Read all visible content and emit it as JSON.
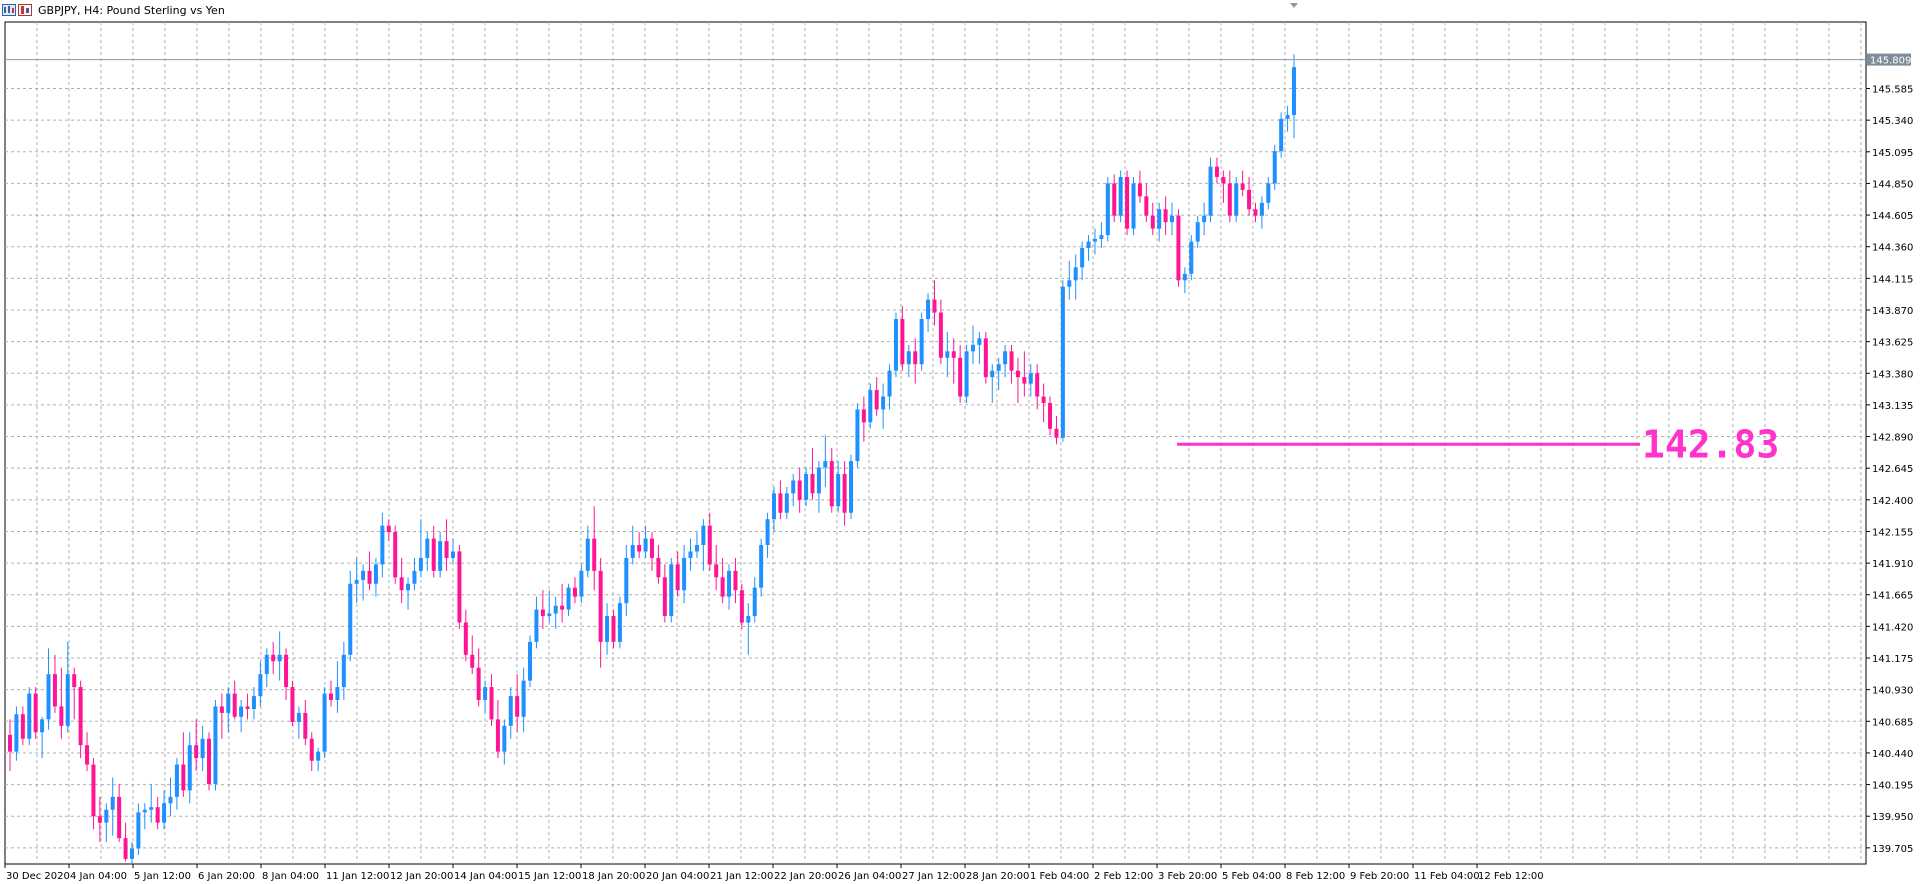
{
  "window": {
    "symbol": "GBPJPY",
    "timeframe": "H4",
    "description": "Pound Sterling vs Yen",
    "title_text": "GBPJPY, H4:  Pound Sterling vs Yen"
  },
  "colors": {
    "bull": "#1e90ff",
    "bear": "#ff1493",
    "grid": "#b0b0b0",
    "axis": "#000000",
    "annotation": "#ff33cc",
    "price_tag_bg": "#7f8c99"
  },
  "chart_data": {
    "type": "candlestick",
    "title": "",
    "xlabel": "",
    "ylabel": "",
    "current_price": "145.809",
    "y_ticks": [
      "145.585",
      "145.340",
      "145.095",
      "144.850",
      "144.605",
      "144.360",
      "144.115",
      "143.870",
      "143.625",
      "143.380",
      "143.135",
      "142.890",
      "142.645",
      "142.400",
      "142.155",
      "141.910",
      "141.665",
      "141.420",
      "141.175",
      "140.930",
      "140.685",
      "140.440",
      "140.195",
      "139.950",
      "139.705"
    ],
    "x_ticks": [
      "30 Dec 2020",
      "4 Jan 04:00",
      "5 Jan 12:00",
      "6 Jan 20:00",
      "8 Jan 04:00",
      "11 Jan 12:00",
      "12 Jan 20:00",
      "14 Jan 04:00",
      "15 Jan 12:00",
      "18 Jan 20:00",
      "20 Jan 04:00",
      "21 Jan 12:00",
      "22 Jan 20:00",
      "26 Jan 04:00",
      "27 Jan 12:00",
      "28 Jan 20:00",
      "1 Feb 04:00",
      "2 Feb 12:00",
      "3 Feb 20:00",
      "5 Feb 04:00",
      "8 Feb 12:00",
      "9 Feb 20:00",
      "11 Feb 04:00",
      "12 Feb 12:00"
    ],
    "ylim": [
      139.58,
      146.1
    ],
    "annotation": {
      "label": "142.83",
      "value": 142.83
    },
    "candles": [
      [
        140.58,
        140.7,
        140.3,
        140.45
      ],
      [
        140.45,
        140.8,
        140.38,
        140.74
      ],
      [
        140.74,
        140.8,
        140.5,
        140.55
      ],
      [
        140.55,
        140.95,
        140.5,
        140.9
      ],
      [
        140.9,
        140.95,
        140.55,
        140.6
      ],
      [
        140.6,
        140.72,
        140.4,
        140.7
      ],
      [
        140.7,
        141.25,
        140.62,
        141.05
      ],
      [
        141.05,
        141.2,
        140.75,
        140.8
      ],
      [
        140.8,
        141.1,
        140.55,
        140.65
      ],
      [
        140.65,
        141.3,
        140.6,
        141.05
      ],
      [
        141.05,
        141.1,
        140.7,
        140.95
      ],
      [
        140.95,
        141.0,
        140.4,
        140.5
      ],
      [
        140.5,
        140.6,
        140.3,
        140.35
      ],
      [
        140.35,
        140.4,
        139.85,
        139.95
      ],
      [
        139.95,
        140.1,
        139.75,
        139.9
      ],
      [
        139.9,
        140.05,
        139.75,
        140.0
      ],
      [
        140.0,
        140.25,
        139.8,
        140.1
      ],
      [
        140.1,
        140.2,
        139.75,
        139.78
      ],
      [
        139.78,
        139.9,
        139.6,
        139.62
      ],
      [
        139.62,
        139.75,
        139.58,
        139.7
      ],
      [
        139.7,
        140.05,
        139.65,
        139.98
      ],
      [
        139.98,
        140.05,
        139.85,
        140.0
      ],
      [
        140.0,
        140.2,
        139.9,
        140.02
      ],
      [
        140.02,
        140.1,
        139.85,
        139.9
      ],
      [
        139.9,
        140.15,
        139.85,
        140.05
      ],
      [
        140.05,
        140.25,
        139.95,
        140.1
      ],
      [
        140.1,
        140.4,
        140.0,
        140.35
      ],
      [
        140.35,
        140.6,
        140.1,
        140.15
      ],
      [
        140.15,
        140.6,
        140.05,
        140.5
      ],
      [
        140.5,
        140.7,
        140.3,
        140.4
      ],
      [
        140.4,
        140.65,
        140.3,
        140.55
      ],
      [
        140.55,
        140.6,
        140.15,
        140.2
      ],
      [
        140.2,
        140.85,
        140.15,
        140.8
      ],
      [
        140.8,
        140.9,
        140.55,
        140.75
      ],
      [
        140.75,
        140.95,
        140.6,
        140.9
      ],
      [
        140.9,
        141.0,
        140.7,
        140.72
      ],
      [
        140.72,
        140.85,
        140.6,
        140.8
      ],
      [
        140.8,
        140.9,
        140.7,
        140.78
      ],
      [
        140.78,
        140.95,
        140.7,
        140.88
      ],
      [
        140.88,
        141.15,
        140.8,
        141.05
      ],
      [
        141.05,
        141.25,
        140.95,
        141.2
      ],
      [
        141.2,
        141.3,
        141.05,
        141.15
      ],
      [
        141.15,
        141.38,
        141.0,
        141.2
      ],
      [
        141.2,
        141.25,
        140.85,
        140.95
      ],
      [
        140.95,
        141.0,
        140.65,
        140.68
      ],
      [
        140.68,
        140.8,
        140.55,
        140.75
      ],
      [
        140.75,
        140.85,
        140.5,
        140.55
      ],
      [
        140.55,
        140.6,
        140.3,
        140.38
      ],
      [
        140.38,
        140.48,
        140.3,
        140.45
      ],
      [
        140.45,
        140.95,
        140.4,
        140.9
      ],
      [
        140.9,
        141.0,
        140.8,
        140.85
      ],
      [
        140.85,
        141.15,
        140.75,
        140.95
      ],
      [
        140.95,
        141.3,
        140.85,
        141.2
      ],
      [
        141.2,
        141.85,
        141.15,
        141.75
      ],
      [
        141.75,
        141.95,
        141.6,
        141.78
      ],
      [
        141.78,
        141.9,
        141.62,
        141.85
      ],
      [
        141.85,
        142.0,
        141.7,
        141.75
      ],
      [
        141.75,
        141.95,
        141.65,
        141.9
      ],
      [
        141.9,
        142.3,
        141.8,
        142.2
      ],
      [
        142.2,
        142.25,
        142.08,
        142.15
      ],
      [
        142.15,
        142.2,
        141.75,
        141.8
      ],
      [
        141.8,
        141.95,
        141.6,
        141.7
      ],
      [
        141.7,
        141.8,
        141.55,
        141.75
      ],
      [
        141.75,
        141.95,
        141.7,
        141.85
      ],
      [
        141.85,
        142.25,
        141.8,
        141.95
      ],
      [
        141.95,
        142.15,
        141.85,
        142.1
      ],
      [
        142.1,
        142.2,
        141.8,
        141.85
      ],
      [
        141.85,
        142.15,
        141.8,
        142.08
      ],
      [
        142.08,
        142.25,
        141.85,
        141.95
      ],
      [
        141.95,
        142.1,
        141.9,
        142.0
      ],
      [
        142.0,
        142.05,
        141.4,
        141.45
      ],
      [
        141.45,
        141.55,
        141.15,
        141.2
      ],
      [
        141.2,
        141.35,
        141.05,
        141.1
      ],
      [
        141.1,
        141.25,
        140.8,
        140.85
      ],
      [
        140.85,
        141.0,
        140.75,
        140.95
      ],
      [
        140.95,
        141.05,
        140.65,
        140.7
      ],
      [
        140.7,
        140.85,
        140.4,
        140.45
      ],
      [
        140.45,
        140.7,
        140.35,
        140.65
      ],
      [
        140.65,
        140.95,
        140.55,
        140.88
      ],
      [
        140.88,
        141.05,
        140.6,
        140.72
      ],
      [
        140.72,
        141.1,
        140.6,
        141.0
      ],
      [
        141.0,
        141.35,
        140.95,
        141.3
      ],
      [
        141.3,
        141.65,
        141.25,
        141.55
      ],
      [
        141.55,
        141.7,
        141.4,
        141.5
      ],
      [
        141.5,
        141.7,
        141.45,
        141.52
      ],
      [
        141.52,
        141.65,
        141.4,
        141.58
      ],
      [
        141.58,
        141.75,
        141.45,
        141.55
      ],
      [
        141.55,
        141.75,
        141.5,
        141.72
      ],
      [
        141.72,
        141.8,
        141.6,
        141.65
      ],
      [
        141.65,
        141.9,
        141.6,
        141.85
      ],
      [
        141.85,
        142.2,
        141.8,
        142.1
      ],
      [
        142.1,
        142.35,
        141.7,
        141.85
      ],
      [
        141.85,
        141.95,
        141.1,
        141.3
      ],
      [
        141.3,
        141.6,
        141.2,
        141.5
      ],
      [
        141.5,
        141.55,
        141.25,
        141.3
      ],
      [
        141.3,
        141.65,
        141.25,
        141.6
      ],
      [
        141.6,
        142.05,
        141.5,
        141.95
      ],
      [
        141.95,
        142.2,
        141.9,
        142.05
      ],
      [
        142.05,
        142.15,
        141.95,
        142.0
      ],
      [
        142.0,
        142.2,
        141.95,
        142.1
      ],
      [
        142.1,
        142.15,
        141.85,
        141.95
      ],
      [
        141.95,
        142.05,
        141.75,
        141.8
      ],
      [
        141.8,
        141.9,
        141.45,
        141.5
      ],
      [
        141.5,
        141.95,
        141.45,
        141.9
      ],
      [
        141.9,
        142.0,
        141.65,
        141.7
      ],
      [
        141.7,
        142.05,
        141.6,
        141.95
      ],
      [
        141.95,
        142.1,
        141.85,
        142.0
      ],
      [
        142.0,
        142.15,
        141.95,
        142.05
      ],
      [
        142.05,
        142.25,
        141.85,
        142.2
      ],
      [
        142.2,
        142.3,
        141.85,
        141.9
      ],
      [
        141.9,
        142.05,
        141.7,
        141.8
      ],
      [
        141.8,
        141.95,
        141.6,
        141.65
      ],
      [
        141.65,
        141.9,
        141.55,
        141.85
      ],
      [
        141.85,
        141.95,
        141.6,
        141.7
      ],
      [
        141.7,
        141.75,
        141.4,
        141.45
      ],
      [
        141.45,
        141.6,
        141.2,
        141.5
      ],
      [
        141.5,
        141.8,
        141.45,
        141.72
      ],
      [
        141.72,
        142.1,
        141.65,
        142.05
      ],
      [
        142.05,
        142.3,
        141.95,
        142.25
      ],
      [
        142.25,
        142.5,
        142.15,
        142.45
      ],
      [
        142.45,
        142.55,
        142.25,
        142.3
      ],
      [
        142.3,
        142.5,
        142.25,
        142.45
      ],
      [
        142.45,
        142.6,
        142.35,
        142.55
      ],
      [
        142.55,
        142.65,
        142.3,
        142.4
      ],
      [
        142.4,
        142.65,
        142.35,
        142.6
      ],
      [
        142.6,
        142.8,
        142.4,
        142.45
      ],
      [
        142.45,
        142.7,
        142.3,
        142.65
      ],
      [
        142.65,
        142.9,
        142.5,
        142.7
      ],
      [
        142.7,
        142.8,
        142.3,
        142.35
      ],
      [
        142.35,
        142.7,
        142.3,
        142.6
      ],
      [
        142.6,
        142.7,
        142.2,
        142.3
      ],
      [
        142.3,
        142.75,
        142.25,
        142.7
      ],
      [
        142.7,
        143.15,
        142.65,
        143.1
      ],
      [
        143.1,
        143.2,
        142.85,
        143.0
      ],
      [
        143.0,
        143.3,
        142.95,
        143.25
      ],
      [
        143.25,
        143.35,
        143.05,
        143.1
      ],
      [
        143.1,
        143.3,
        142.95,
        143.2
      ],
      [
        143.2,
        143.45,
        143.1,
        143.4
      ],
      [
        143.4,
        143.85,
        143.35,
        143.8
      ],
      [
        143.8,
        143.9,
        143.4,
        143.45
      ],
      [
        143.45,
        143.6,
        143.35,
        143.55
      ],
      [
        143.55,
        143.65,
        143.3,
        143.45
      ],
      [
        143.45,
        143.85,
        143.4,
        143.8
      ],
      [
        143.8,
        144.0,
        143.7,
        143.95
      ],
      [
        143.95,
        144.1,
        143.75,
        143.85
      ],
      [
        143.85,
        143.95,
        143.45,
        143.5
      ],
      [
        143.5,
        143.7,
        143.35,
        143.55
      ],
      [
        143.55,
        143.65,
        143.3,
        143.5
      ],
      [
        143.5,
        143.6,
        143.15,
        143.2
      ],
      [
        143.2,
        143.6,
        143.15,
        143.55
      ],
      [
        143.55,
        143.75,
        143.45,
        143.6
      ],
      [
        143.6,
        143.7,
        143.45,
        143.65
      ],
      [
        143.65,
        143.7,
        143.3,
        143.35
      ],
      [
        143.35,
        143.45,
        143.15,
        143.4
      ],
      [
        143.4,
        143.5,
        143.25,
        143.45
      ],
      [
        143.45,
        143.6,
        143.35,
        143.55
      ],
      [
        143.55,
        143.6,
        143.3,
        143.4
      ],
      [
        143.4,
        143.5,
        143.15,
        143.35
      ],
      [
        143.35,
        143.55,
        143.2,
        143.3
      ],
      [
        143.3,
        143.45,
        143.2,
        143.38
      ],
      [
        143.38,
        143.45,
        143.1,
        143.2
      ],
      [
        143.2,
        143.3,
        143.0,
        143.15
      ],
      [
        143.15,
        143.2,
        142.9,
        142.95
      ],
      [
        142.95,
        143.05,
        142.83,
        142.88
      ],
      [
        142.88,
        144.1,
        142.85,
        144.05
      ],
      [
        144.05,
        144.25,
        143.95,
        144.1
      ],
      [
        144.1,
        144.3,
        143.95,
        144.2
      ],
      [
        144.2,
        144.4,
        144.1,
        144.35
      ],
      [
        144.35,
        144.45,
        144.25,
        144.4
      ],
      [
        144.4,
        144.5,
        144.3,
        144.42
      ],
      [
        144.42,
        144.55,
        144.35,
        144.45
      ],
      [
        144.45,
        144.9,
        144.4,
        144.85
      ],
      [
        144.85,
        144.92,
        144.55,
        144.6
      ],
      [
        144.6,
        144.95,
        144.55,
        144.9
      ],
      [
        144.9,
        144.95,
        144.45,
        144.5
      ],
      [
        144.5,
        144.9,
        144.45,
        144.85
      ],
      [
        144.85,
        144.95,
        144.7,
        144.75
      ],
      [
        144.75,
        144.85,
        144.55,
        144.6
      ],
      [
        144.6,
        144.7,
        144.45,
        144.5
      ],
      [
        144.5,
        144.7,
        144.4,
        144.65
      ],
      [
        144.65,
        144.75,
        144.45,
        144.55
      ],
      [
        144.55,
        144.7,
        144.45,
        144.6
      ],
      [
        144.6,
        144.65,
        144.05,
        144.1
      ],
      [
        144.1,
        144.2,
        144.0,
        144.15
      ],
      [
        144.15,
        144.45,
        144.1,
        144.4
      ],
      [
        144.4,
        144.6,
        144.35,
        144.55
      ],
      [
        144.55,
        144.7,
        144.45,
        144.6
      ],
      [
        144.6,
        145.05,
        144.55,
        144.98
      ],
      [
        144.98,
        145.05,
        144.85,
        144.9
      ],
      [
        144.9,
        144.95,
        144.7,
        144.85
      ],
      [
        144.85,
        144.95,
        144.55,
        144.6
      ],
      [
        144.6,
        144.9,
        144.55,
        144.85
      ],
      [
        144.85,
        144.95,
        144.75,
        144.8
      ],
      [
        144.8,
        144.9,
        144.6,
        144.65
      ],
      [
        144.65,
        144.7,
        144.55,
        144.6
      ],
      [
        144.6,
        144.75,
        144.5,
        144.7
      ],
      [
        144.7,
        144.9,
        144.65,
        144.85
      ],
      [
        144.85,
        145.15,
        144.8,
        145.1
      ],
      [
        145.1,
        145.4,
        145.05,
        145.35
      ],
      [
        145.35,
        145.45,
        145.25,
        145.38
      ],
      [
        145.38,
        145.85,
        145.2,
        145.75
      ]
    ]
  }
}
